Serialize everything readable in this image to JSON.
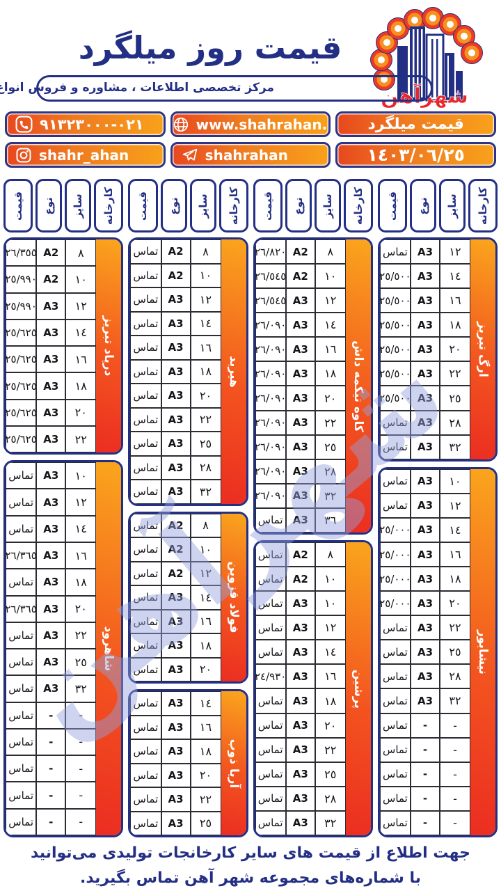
{
  "header": {
    "title": "قیمت روز میلگرد",
    "subtitle": "مرکز تخصصی اطلاعات ، مشاوره و فروش انواع آهن آلات",
    "logo_text": "شهرآهن"
  },
  "contact": {
    "phone": "٠٢١-٩١٣٢٣٠٠٠",
    "website": "www.shahrahan.com",
    "price_label": "قیمت میلگرد",
    "instagram": "shahr_ahan",
    "telegram": "shahrahan",
    "date": "١٤٠٣/٠٦/٢٥"
  },
  "table": {
    "headers": {
      "price": "قیمت",
      "type": "نوع",
      "size": "سایز",
      "factory": "کارخانه"
    },
    "columns": [
      {
        "sections": [
          {
            "factory": "ارگ تبریز",
            "rows": [
              [
                "١٢",
                "A3",
                "تماس"
              ],
              [
                "١٤",
                "A3",
                "٢٥/٥٠٠"
              ],
              [
                "١٦",
                "A3",
                "٢٥/٥٠٠"
              ],
              [
                "١٨",
                "A3",
                "٢٥/٥٠٠"
              ],
              [
                "٢٠",
                "A3",
                "٢٥/٥٠٠"
              ],
              [
                "٢٢",
                "A3",
                "٢٥/٥٠٠"
              ],
              [
                "٢٥",
                "A3",
                "٢٥/٥٠٠"
              ],
              [
                "٢٨",
                "A3",
                "تماس"
              ],
              [
                "٣٢",
                "A3",
                "تماس"
              ]
            ]
          },
          {
            "factory": "نیشابور",
            "rows": [
              [
                "١٠",
                "A3",
                "تماس"
              ],
              [
                "١٢",
                "A3",
                "تماس"
              ],
              [
                "١٤",
                "A3",
                "٢٥/٠٠٠"
              ],
              [
                "١٦",
                "A3",
                "٢٥/٠٠٠"
              ],
              [
                "١٨",
                "A3",
                "٢٥/٠٠٠"
              ],
              [
                "٢٠",
                "A3",
                "٢٥/٠٠٠"
              ],
              [
                "٢٢",
                "A3",
                "تماس"
              ],
              [
                "٢٥",
                "A3",
                "تماس"
              ],
              [
                "٢٨",
                "A3",
                "تماس"
              ],
              [
                "٣٢",
                "A3",
                "تماس"
              ],
              [
                "-",
                "-",
                "تماس"
              ],
              [
                "-",
                "-",
                "تماس"
              ],
              [
                "-",
                "-",
                "تماس"
              ],
              [
                "-",
                "-",
                "تماس"
              ],
              [
                "-",
                "-",
                "تماس"
              ]
            ]
          }
        ]
      },
      {
        "sections": [
          {
            "factory": "کاوه تیکمه داش",
            "rows": [
              [
                "٨",
                "A2",
                "٢٦/٨٢٠"
              ],
              [
                "١٠",
                "A2",
                "٢٦/٥٤٥"
              ],
              [
                "١٢",
                "A3",
                "٢٦/٥٤٥"
              ],
              [
                "١٤",
                "A3",
                "٢٦/٠٩٠"
              ],
              [
                "١٦",
                "A3",
                "٢٦/٠٩٠"
              ],
              [
                "١٨",
                "A3",
                "٢٦/٠٩٠"
              ],
              [
                "٢٠",
                "A3",
                "٢٦/٠٩٠"
              ],
              [
                "٢٢",
                "A3",
                "٢٦/٠٩٠"
              ],
              [
                "٢٥",
                "A3",
                "٢٦/٠٩٠"
              ],
              [
                "٢٨",
                "A3",
                "٢٦/٠٩٠"
              ],
              [
                "٣٢",
                "A3",
                "٢٦/٠٩٠"
              ],
              [
                "٣٦",
                "A3",
                "تماس"
              ]
            ]
          },
          {
            "factory": "پرشین",
            "rows": [
              [
                "٨",
                "A2",
                "تماس"
              ],
              [
                "١٠",
                "A2",
                "تماس"
              ],
              [
                "١٠",
                "A3",
                "تماس"
              ],
              [
                "١٢",
                "A3",
                "تماس"
              ],
              [
                "١٤",
                "A3",
                "تماس"
              ],
              [
                "١٦",
                "A3",
                "٢٤/٩٣٠"
              ],
              [
                "١٨",
                "A3",
                "تماس"
              ],
              [
                "٢٠",
                "A3",
                "تماس"
              ],
              [
                "٢٢",
                "A3",
                "تماس"
              ],
              [
                "٢٥",
                "A3",
                "تماس"
              ],
              [
                "٢٨",
                "A3",
                "تماس"
              ],
              [
                "٣٢",
                "A3",
                "تماس"
              ]
            ]
          }
        ]
      },
      {
        "sections": [
          {
            "factory": "هیربد",
            "rows": [
              [
                "٨",
                "A2",
                "تماس"
              ],
              [
                "١٠",
                "A2",
                "تماس"
              ],
              [
                "١٢",
                "A3",
                "تماس"
              ],
              [
                "١٤",
                "A3",
                "تماس"
              ],
              [
                "١٦",
                "A3",
                "تماس"
              ],
              [
                "١٨",
                "A3",
                "تماس"
              ],
              [
                "٢٠",
                "A3",
                "تماس"
              ],
              [
                "٢٢",
                "A3",
                "تماس"
              ],
              [
                "٢٥",
                "A3",
                "تماس"
              ],
              [
                "٢٨",
                "A3",
                "تماس"
              ],
              [
                "٣٢",
                "A3",
                "تماس"
              ]
            ]
          },
          {
            "factory": "فولاد قزوین",
            "rows": [
              [
                "٨",
                "A2",
                "تماس"
              ],
              [
                "١٠",
                "A2",
                "تماس"
              ],
              [
                "١٢",
                "A2",
                "تماس"
              ],
              [
                "١٤",
                "A3",
                "تماس"
              ],
              [
                "١٦",
                "A3",
                "تماس"
              ],
              [
                "١٨",
                "A3",
                "تماس"
              ],
              [
                "٢٠",
                "A3",
                "تماس"
              ]
            ]
          },
          {
            "factory": "آریا ذوب",
            "rows": [
              [
                "١٤",
                "A3",
                "تماس"
              ],
              [
                "١٦",
                "A3",
                "تماس"
              ],
              [
                "١٨",
                "A3",
                "تماس"
              ],
              [
                "٢٠",
                "A3",
                "تماس"
              ],
              [
                "٢٢",
                "A3",
                "تماس"
              ],
              [
                "٢٥",
                "A3",
                "تماس"
              ]
            ]
          }
        ]
      },
      {
        "sections": [
          {
            "factory": "درپاد تبریز",
            "rows": [
              [
                "٨",
                "A2",
                "٢٦/٣٥٥"
              ],
              [
                "١٠",
                "A2",
                "٢٥/٩٩٠"
              ],
              [
                "١٢",
                "A3",
                "٢٥/٩٩٠"
              ],
              [
                "١٤",
                "A3",
                "٢٥/٦٢٥"
              ],
              [
                "١٦",
                "A3",
                "٢٥/٦٢٥"
              ],
              [
                "١٨",
                "A3",
                "٢٥/٦٢٥"
              ],
              [
                "٢٠",
                "A3",
                "٢٥/٦٢٥"
              ],
              [
                "٢٢",
                "A3",
                "٢٥/٦٢٥"
              ]
            ]
          },
          {
            "factory": "شاهرود",
            "rows": [
              [
                "١٠",
                "A3",
                "تماس"
              ],
              [
                "١٢",
                "A3",
                "تماس"
              ],
              [
                "١٤",
                "A3",
                "تماس"
              ],
              [
                "١٦",
                "A3",
                "٢٦/٣٦٥"
              ],
              [
                "١٨",
                "A3",
                "تماس"
              ],
              [
                "٢٠",
                "A3",
                "٢٦/٣٦٥"
              ],
              [
                "٢٢",
                "A3",
                "تماس"
              ],
              [
                "٢٥",
                "A3",
                "تماس"
              ],
              [
                "٣٢",
                "A3",
                "تماس"
              ],
              [
                "-",
                "-",
                "تماس"
              ],
              [
                "-",
                "-",
                "تماس"
              ],
              [
                "-",
                "-",
                "تماس"
              ],
              [
                "-",
                "-",
                "تماس"
              ],
              [
                "-",
                "-",
                "تماس"
              ]
            ]
          }
        ]
      }
    ]
  },
  "watermark": "شهرآهن",
  "footer": {
    "line1": "جهت اطلاع از قیمت های سایر کارخانجات تولیدی می‌توانید",
    "line2": "با شماره‌های مجموعه شهر آهن تماس بگیرید."
  },
  "colors": {
    "navy": "#232f85",
    "orange": "#f9a11b",
    "red_orange": "#eb2d21",
    "watermark_blue": "#93a2dd"
  }
}
